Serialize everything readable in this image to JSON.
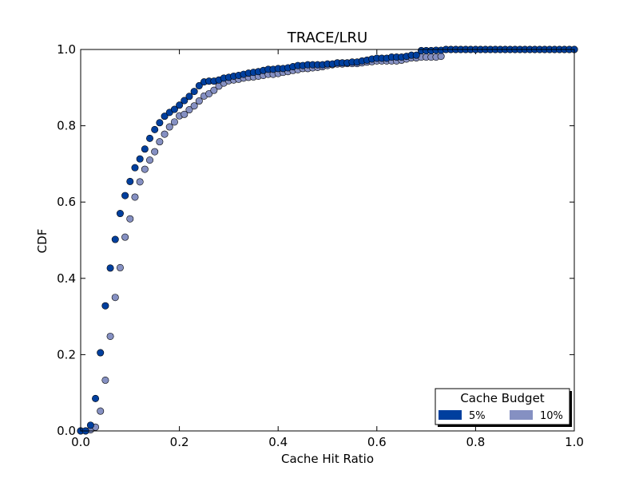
{
  "chart_data": {
    "type": "scatter",
    "title": "TRACE/LRU",
    "xlabel": "Cache Hit Ratio",
    "ylabel": "CDF",
    "xlim": [
      0.0,
      1.0
    ],
    "ylim": [
      0.0,
      1.0
    ],
    "xticks": [
      "0.0",
      "0.2",
      "0.4",
      "0.6",
      "0.8",
      "1.0"
    ],
    "yticks": [
      "0.0",
      "0.2",
      "0.4",
      "0.6",
      "0.8",
      "1.0"
    ],
    "grid": false,
    "legend": {
      "title": "Cache Budget",
      "position": "bottom-right"
    },
    "series": [
      {
        "name": "5%",
        "color": "#003f9e",
        "points": [
          [
            0.0,
            0.0
          ],
          [
            0.01,
            0.0
          ],
          [
            0.02,
            0.015
          ],
          [
            0.03,
            0.085
          ],
          [
            0.04,
            0.205
          ],
          [
            0.05,
            0.328
          ],
          [
            0.06,
            0.427
          ],
          [
            0.07,
            0.502
          ],
          [
            0.08,
            0.57
          ],
          [
            0.09,
            0.617
          ],
          [
            0.1,
            0.654
          ],
          [
            0.11,
            0.69
          ],
          [
            0.12,
            0.713
          ],
          [
            0.13,
            0.739
          ],
          [
            0.14,
            0.767
          ],
          [
            0.15,
            0.79
          ],
          [
            0.16,
            0.808
          ],
          [
            0.17,
            0.825
          ],
          [
            0.18,
            0.835
          ],
          [
            0.19,
            0.843
          ],
          [
            0.2,
            0.854
          ],
          [
            0.21,
            0.866
          ],
          [
            0.22,
            0.877
          ],
          [
            0.23,
            0.89
          ],
          [
            0.24,
            0.905
          ],
          [
            0.25,
            0.915
          ],
          [
            0.26,
            0.917
          ],
          [
            0.27,
            0.917
          ],
          [
            0.28,
            0.92
          ],
          [
            0.29,
            0.925
          ],
          [
            0.3,
            0.927
          ],
          [
            0.31,
            0.93
          ],
          [
            0.32,
            0.932
          ],
          [
            0.33,
            0.935
          ],
          [
            0.34,
            0.938
          ],
          [
            0.35,
            0.94
          ],
          [
            0.36,
            0.942
          ],
          [
            0.37,
            0.945
          ],
          [
            0.38,
            0.948
          ],
          [
            0.39,
            0.948
          ],
          [
            0.4,
            0.95
          ],
          [
            0.41,
            0.95
          ],
          [
            0.42,
            0.952
          ],
          [
            0.43,
            0.955
          ],
          [
            0.44,
            0.958
          ],
          [
            0.45,
            0.958
          ],
          [
            0.46,
            0.96
          ],
          [
            0.47,
            0.96
          ],
          [
            0.48,
            0.96
          ],
          [
            0.49,
            0.96
          ],
          [
            0.5,
            0.962
          ],
          [
            0.51,
            0.962
          ],
          [
            0.52,
            0.965
          ],
          [
            0.53,
            0.965
          ],
          [
            0.54,
            0.965
          ],
          [
            0.55,
            0.967
          ],
          [
            0.56,
            0.967
          ],
          [
            0.57,
            0.97
          ],
          [
            0.58,
            0.972
          ],
          [
            0.59,
            0.975
          ],
          [
            0.6,
            0.977
          ],
          [
            0.61,
            0.977
          ],
          [
            0.62,
            0.977
          ],
          [
            0.63,
            0.98
          ],
          [
            0.64,
            0.98
          ],
          [
            0.65,
            0.98
          ],
          [
            0.66,
            0.982
          ],
          [
            0.67,
            0.985
          ],
          [
            0.68,
            0.985
          ],
          [
            0.69,
            0.997
          ],
          [
            0.7,
            0.997
          ],
          [
            0.71,
            0.997
          ],
          [
            0.72,
            0.998
          ],
          [
            0.73,
            0.998
          ],
          [
            0.74,
            1.0
          ],
          [
            0.75,
            1.0
          ],
          [
            0.76,
            1.0
          ],
          [
            0.77,
            1.0
          ],
          [
            0.78,
            1.0
          ],
          [
            0.79,
            1.0
          ],
          [
            0.8,
            1.0
          ],
          [
            0.81,
            1.0
          ],
          [
            0.82,
            1.0
          ],
          [
            0.83,
            1.0
          ],
          [
            0.84,
            1.0
          ],
          [
            0.85,
            1.0
          ],
          [
            0.86,
            1.0
          ],
          [
            0.87,
            1.0
          ],
          [
            0.88,
            1.0
          ],
          [
            0.89,
            1.0
          ],
          [
            0.9,
            1.0
          ],
          [
            0.91,
            1.0
          ],
          [
            0.92,
            1.0
          ],
          [
            0.93,
            1.0
          ],
          [
            0.94,
            1.0
          ],
          [
            0.95,
            1.0
          ],
          [
            0.96,
            1.0
          ],
          [
            0.97,
            1.0
          ],
          [
            0.98,
            1.0
          ],
          [
            0.99,
            1.0
          ],
          [
            1.0,
            1.0
          ]
        ]
      },
      {
        "name": "10%",
        "color": "#8590c2",
        "points": [
          [
            0.0,
            0.0
          ],
          [
            0.01,
            0.0
          ],
          [
            0.02,
            0.003
          ],
          [
            0.03,
            0.01
          ],
          [
            0.04,
            0.052
          ],
          [
            0.05,
            0.133
          ],
          [
            0.06,
            0.248
          ],
          [
            0.07,
            0.35
          ],
          [
            0.08,
            0.428
          ],
          [
            0.09,
            0.508
          ],
          [
            0.1,
            0.556
          ],
          [
            0.11,
            0.613
          ],
          [
            0.12,
            0.653
          ],
          [
            0.13,
            0.686
          ],
          [
            0.14,
            0.71
          ],
          [
            0.15,
            0.732
          ],
          [
            0.16,
            0.758
          ],
          [
            0.17,
            0.778
          ],
          [
            0.18,
            0.797
          ],
          [
            0.19,
            0.81
          ],
          [
            0.2,
            0.826
          ],
          [
            0.21,
            0.83
          ],
          [
            0.22,
            0.842
          ],
          [
            0.23,
            0.852
          ],
          [
            0.24,
            0.865
          ],
          [
            0.25,
            0.878
          ],
          [
            0.26,
            0.884
          ],
          [
            0.27,
            0.893
          ],
          [
            0.28,
            0.904
          ],
          [
            0.29,
            0.912
          ],
          [
            0.3,
            0.918
          ],
          [
            0.31,
            0.92
          ],
          [
            0.32,
            0.922
          ],
          [
            0.33,
            0.925
          ],
          [
            0.34,
            0.927
          ],
          [
            0.35,
            0.928
          ],
          [
            0.36,
            0.93
          ],
          [
            0.37,
            0.932
          ],
          [
            0.38,
            0.935
          ],
          [
            0.39,
            0.935
          ],
          [
            0.4,
            0.937
          ],
          [
            0.41,
            0.94
          ],
          [
            0.42,
            0.942
          ],
          [
            0.43,
            0.945
          ],
          [
            0.44,
            0.947
          ],
          [
            0.45,
            0.95
          ],
          [
            0.46,
            0.95
          ],
          [
            0.47,
            0.952
          ],
          [
            0.48,
            0.953
          ],
          [
            0.49,
            0.955
          ],
          [
            0.5,
            0.958
          ],
          [
            0.51,
            0.96
          ],
          [
            0.52,
            0.962
          ],
          [
            0.53,
            0.962
          ],
          [
            0.54,
            0.963
          ],
          [
            0.55,
            0.963
          ],
          [
            0.56,
            0.963
          ],
          [
            0.57,
            0.965
          ],
          [
            0.58,
            0.967
          ],
          [
            0.59,
            0.968
          ],
          [
            0.6,
            0.97
          ],
          [
            0.61,
            0.97
          ],
          [
            0.62,
            0.97
          ],
          [
            0.63,
            0.97
          ],
          [
            0.64,
            0.97
          ],
          [
            0.65,
            0.972
          ],
          [
            0.66,
            0.975
          ],
          [
            0.67,
            0.978
          ],
          [
            0.68,
            0.978
          ],
          [
            0.69,
            0.98
          ],
          [
            0.7,
            0.98
          ],
          [
            0.71,
            0.98
          ],
          [
            0.72,
            0.98
          ],
          [
            0.73,
            0.982
          ],
          [
            0.74,
            1.0
          ],
          [
            0.75,
            1.0
          ],
          [
            0.76,
            1.0
          ],
          [
            0.77,
            1.0
          ],
          [
            0.78,
            1.0
          ],
          [
            0.79,
            1.0
          ],
          [
            0.8,
            1.0
          ],
          [
            0.81,
            1.0
          ],
          [
            0.82,
            1.0
          ],
          [
            0.83,
            1.0
          ],
          [
            0.84,
            1.0
          ],
          [
            0.85,
            1.0
          ],
          [
            0.86,
            1.0
          ],
          [
            0.87,
            1.0
          ],
          [
            0.88,
            1.0
          ],
          [
            0.89,
            1.0
          ],
          [
            0.9,
            1.0
          ],
          [
            0.91,
            1.0
          ],
          [
            0.92,
            1.0
          ],
          [
            0.93,
            1.0
          ],
          [
            0.94,
            1.0
          ],
          [
            0.95,
            1.0
          ],
          [
            0.96,
            1.0
          ],
          [
            0.97,
            1.0
          ],
          [
            0.98,
            1.0
          ],
          [
            0.99,
            1.0
          ],
          [
            1.0,
            1.0
          ]
        ]
      }
    ]
  }
}
